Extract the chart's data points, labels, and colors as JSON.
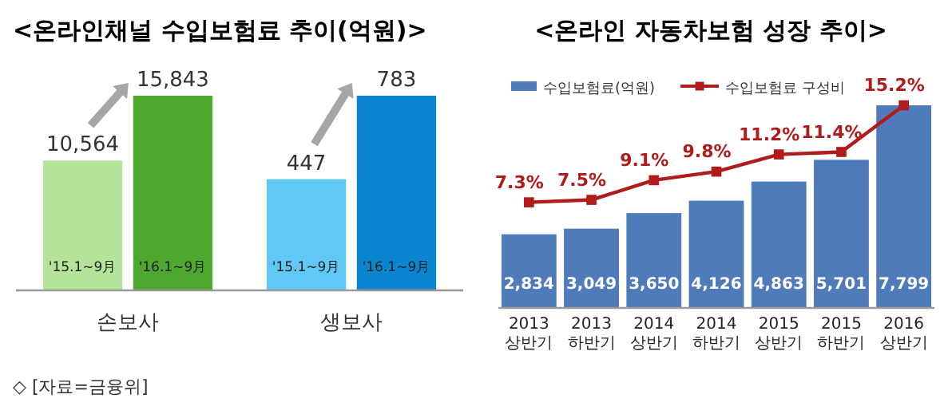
{
  "chart_data": [
    {
      "type": "bar",
      "title": "<온라인채널 수입보험료 추이(억원)>",
      "xlabel": "손보사",
      "categories": [
        "'15.1~9月",
        "'16.1~9月"
      ],
      "values": [
        10564,
        15843
      ],
      "colors": [
        "#b5e39a",
        "#4ea72e"
      ],
      "value_labels": [
        "10,564",
        "15,843"
      ],
      "annotations": [
        "◇ [자료=금융위]"
      ]
    },
    {
      "type": "bar",
      "xlabel": "생보사",
      "categories": [
        "'15.1~9月",
        "'16.1~9月"
      ],
      "values": [
        447,
        783
      ],
      "colors": [
        "#5fc8f5",
        "#0a86d0"
      ],
      "value_labels": [
        "447",
        "783"
      ]
    },
    {
      "type": "bar",
      "title": "<온라인 자동차보험 성장 추이>",
      "categories": [
        "2013\n상반기",
        "2013\n하반기",
        "2014\n상반기",
        "2014\n하반기",
        "2015\n상반기",
        "2015\n하반기",
        "2016\n상반기"
      ],
      "legend": "top",
      "marker": "square",
      "series": [
        {
          "name": "수입보험료(억원)",
          "color": "#4f7bba",
          "values": [
            2834,
            3049,
            3650,
            4126,
            4863,
            5701,
            7799
          ],
          "value_labels": [
            "2,834",
            "3,049",
            "3,650",
            "4,126",
            "4,863",
            "5,701",
            "7,799"
          ]
        },
        {
          "name": "수입보험료 구성비",
          "type": "line",
          "axis": "y2",
          "color": "#b01c1c",
          "values": [
            7.3,
            7.5,
            9.1,
            9.8,
            11.2,
            11.4,
            15.2
          ],
          "value_labels": [
            "7.3%",
            "7.5%",
            "9.1%",
            "9.8%",
            "11.2%",
            "11.4%",
            "15.2%"
          ]
        }
      ]
    }
  ]
}
